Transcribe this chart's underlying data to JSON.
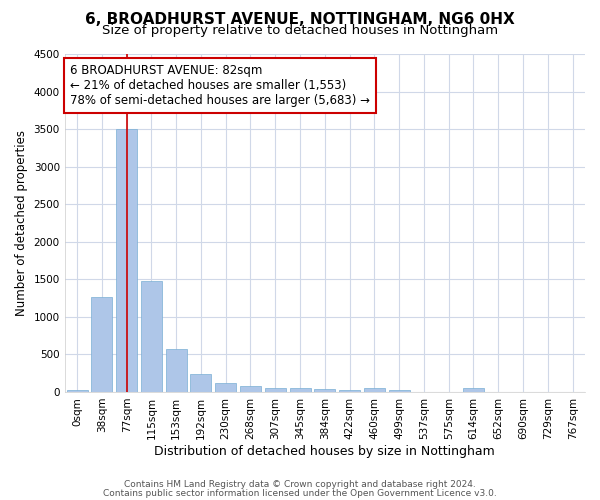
{
  "title1": "6, BROADHURST AVENUE, NOTTINGHAM, NG6 0HX",
  "title2": "Size of property relative to detached houses in Nottingham",
  "xlabel": "Distribution of detached houses by size in Nottingham",
  "ylabel": "Number of detached properties",
  "categories": [
    "0sqm",
    "38sqm",
    "77sqm",
    "115sqm",
    "153sqm",
    "192sqm",
    "230sqm",
    "268sqm",
    "307sqm",
    "345sqm",
    "384sqm",
    "422sqm",
    "460sqm",
    "499sqm",
    "537sqm",
    "575sqm",
    "614sqm",
    "652sqm",
    "690sqm",
    "729sqm",
    "767sqm"
  ],
  "values": [
    30,
    1270,
    3500,
    1480,
    570,
    235,
    115,
    80,
    55,
    50,
    35,
    30,
    50,
    25,
    5,
    5,
    50,
    5,
    5,
    5,
    5
  ],
  "bar_color": "#aec6e8",
  "bar_edge_color": "#7aafd4",
  "highlight_index": 2,
  "highlight_line_color": "#cc0000",
  "annotation_line1": "6 BROADHURST AVENUE: 82sqm",
  "annotation_line2": "← 21% of detached houses are smaller (1,553)",
  "annotation_line3": "78% of semi-detached houses are larger (5,683) →",
  "annotation_box_color": "#ffffff",
  "annotation_box_edge": "#cc0000",
  "ylim": [
    0,
    4500
  ],
  "yticks": [
    0,
    500,
    1000,
    1500,
    2000,
    2500,
    3000,
    3500,
    4000,
    4500
  ],
  "footer1": "Contains HM Land Registry data © Crown copyright and database right 2024.",
  "footer2": "Contains public sector information licensed under the Open Government Licence v3.0.",
  "bg_color": "#ffffff",
  "plot_bg_color": "#ffffff",
  "grid_color": "#d0d8e8",
  "title1_fontsize": 11,
  "title2_fontsize": 9.5,
  "ylabel_fontsize": 8.5,
  "xlabel_fontsize": 9,
  "tick_fontsize": 7.5,
  "annotation_fontsize": 8.5,
  "footer_fontsize": 6.5
}
